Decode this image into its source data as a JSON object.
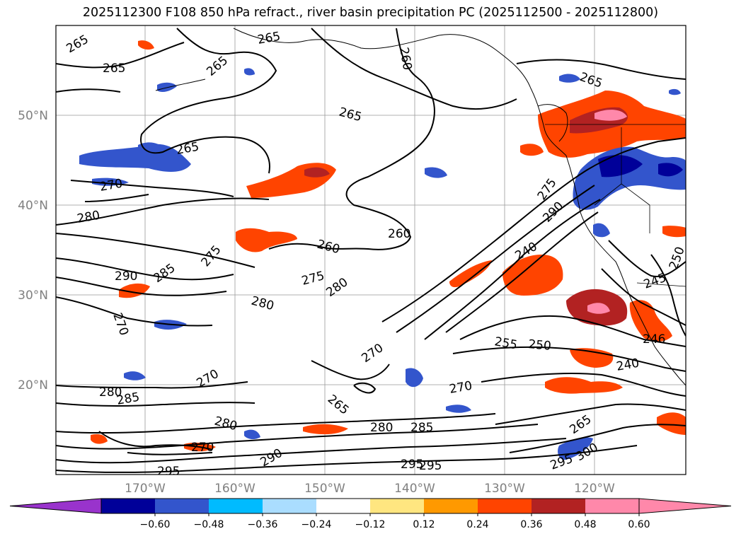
{
  "title": "2025112300 F108 850 hPa refract., river basin precipitation PC (2025112500 - 2025112800)",
  "lat_labels": [
    "50°N",
    "40°N",
    "30°N",
    "20°N"
  ],
  "lon_labels": [
    "170°W",
    "160°W",
    "150°W",
    "140°W",
    "130°W",
    "120°W"
  ],
  "colorbar": {
    "ticks": [
      "−0.60",
      "−0.48",
      "−0.36",
      "−0.24",
      "−0.12",
      "0.12",
      "0.24",
      "0.36",
      "0.48",
      "0.60"
    ],
    "colors": [
      "#9933cc",
      "#000099",
      "#3355cc",
      "#00bbff",
      "#aaddff",
      "#ffffff",
      "#ffe680",
      "#ff9900",
      "#ff4400",
      "#b22222",
      "#ff88aa",
      "#ff88aa"
    ]
  },
  "contour_labels": [
    "265",
    "265",
    "265",
    "265",
    "260",
    "265",
    "265",
    "265",
    "270",
    "280",
    "275",
    "260",
    "260",
    "290",
    "285",
    "275",
    "280",
    "280",
    "270",
    "270",
    "280",
    "285",
    "265",
    "270",
    "280",
    "270",
    "270",
    "280",
    "285",
    "290",
    "295",
    "295",
    "295",
    "240",
    "255",
    "250",
    "240",
    "265",
    "295",
    "300",
    "245",
    "250",
    "275",
    "290",
    "246"
  ]
}
